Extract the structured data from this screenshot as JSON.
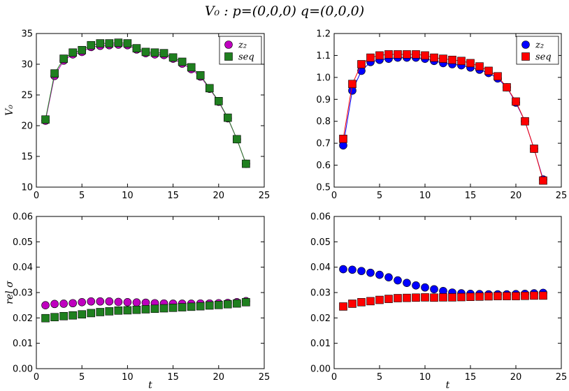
{
  "figure_title": "V₀ : p=(0,0,0)  q=(0,0,0)",
  "chart_data": [
    {
      "type": "scatter",
      "panel": "top-left",
      "ylabel": "V₀",
      "xlabel": "",
      "xlim": [
        0,
        25
      ],
      "ylim": [
        10,
        35
      ],
      "xticks": [
        0,
        5,
        10,
        15,
        20,
        25
      ],
      "yticks": [
        10,
        15,
        20,
        25,
        30,
        35
      ],
      "tick_format": "int",
      "legend_position": "top-right",
      "series": [
        {
          "name": "z₂",
          "marker": "circle",
          "color": "#bf00bf",
          "line": true,
          "x": [
            1,
            2,
            3,
            4,
            5,
            6,
            7,
            8,
            9,
            10,
            11,
            12,
            13,
            14,
            15,
            16,
            17,
            18,
            19,
            20,
            21,
            22,
            23
          ],
          "y": [
            20.8,
            28.1,
            30.6,
            31.6,
            32.0,
            32.8,
            33.0,
            33.1,
            33.2,
            33.1,
            32.4,
            31.8,
            31.6,
            31.5,
            30.9,
            30.1,
            29.2,
            28.0,
            26.0,
            23.9,
            21.2,
            17.8,
            13.8
          ]
        },
        {
          "name": "seq",
          "marker": "square",
          "color": "#1f7f1f",
          "line": true,
          "x": [
            1,
            2,
            3,
            4,
            5,
            6,
            7,
            8,
            9,
            10,
            11,
            12,
            13,
            14,
            15,
            16,
            17,
            18,
            19,
            20,
            21,
            22,
            23
          ],
          "y": [
            21.0,
            28.5,
            30.9,
            31.9,
            32.3,
            33.1,
            33.4,
            33.4,
            33.5,
            33.4,
            32.6,
            32.0,
            31.9,
            31.8,
            31.1,
            30.4,
            29.5,
            28.2,
            26.1,
            24.0,
            21.3,
            17.8,
            13.8
          ]
        }
      ]
    },
    {
      "type": "scatter",
      "panel": "top-right",
      "ylabel": "",
      "xlabel": "",
      "xlim": [
        0,
        25
      ],
      "ylim": [
        0.5,
        1.2
      ],
      "xticks": [
        0,
        5,
        10,
        15,
        20,
        25
      ],
      "yticks": [
        0.5,
        0.6,
        0.7,
        0.8,
        0.9,
        1.0,
        1.1,
        1.2
      ],
      "tick_format": "1",
      "legend_position": "top-right",
      "series": [
        {
          "name": "z₂",
          "marker": "circle",
          "color": "#0000ff",
          "line": true,
          "x": [
            1,
            2,
            3,
            4,
            5,
            6,
            7,
            8,
            9,
            10,
            11,
            12,
            13,
            14,
            15,
            16,
            17,
            18,
            19,
            20,
            21,
            22,
            23
          ],
          "y": [
            0.69,
            0.94,
            1.03,
            1.07,
            1.08,
            1.085,
            1.09,
            1.09,
            1.09,
            1.085,
            1.075,
            1.065,
            1.06,
            1.055,
            1.045,
            1.035,
            1.02,
            0.995,
            0.955,
            0.885,
            0.8,
            0.675,
            0.535
          ]
        },
        {
          "name": "seq",
          "marker": "square",
          "color": "#ff0000",
          "line": true,
          "x": [
            1,
            2,
            3,
            4,
            5,
            6,
            7,
            8,
            9,
            10,
            11,
            12,
            13,
            14,
            15,
            16,
            17,
            18,
            19,
            20,
            21,
            22,
            23
          ],
          "y": [
            0.72,
            0.97,
            1.06,
            1.09,
            1.1,
            1.105,
            1.105,
            1.105,
            1.105,
            1.1,
            1.09,
            1.085,
            1.08,
            1.075,
            1.065,
            1.05,
            1.03,
            1.005,
            0.955,
            0.89,
            0.8,
            0.675,
            0.53
          ]
        }
      ]
    },
    {
      "type": "scatter",
      "panel": "bottom-left",
      "ylabel": "rel σ",
      "xlabel": "t",
      "xlim": [
        0,
        25
      ],
      "ylim": [
        0,
        0.06
      ],
      "xticks": [
        0,
        5,
        10,
        15,
        20,
        25
      ],
      "yticks": [
        0,
        0.01,
        0.02,
        0.03,
        0.04,
        0.05,
        0.06
      ],
      "tick_format": "2",
      "legend_position": "none",
      "series": [
        {
          "name": "z₂",
          "marker": "circle",
          "color": "#bf00bf",
          "line": false,
          "x": [
            1,
            2,
            3,
            4,
            5,
            6,
            7,
            8,
            9,
            10,
            11,
            12,
            13,
            14,
            15,
            16,
            17,
            18,
            19,
            20,
            21,
            22,
            23
          ],
          "y": [
            0.025,
            0.0255,
            0.0256,
            0.0258,
            0.0262,
            0.0265,
            0.0265,
            0.0265,
            0.0263,
            0.0262,
            0.0261,
            0.026,
            0.0258,
            0.0257,
            0.0256,
            0.0256,
            0.0256,
            0.0257,
            0.0257,
            0.0258,
            0.0259,
            0.0262,
            0.0266
          ]
        },
        {
          "name": "seq",
          "marker": "square",
          "color": "#1f7f1f",
          "line": false,
          "x": [
            1,
            2,
            3,
            4,
            5,
            6,
            7,
            8,
            9,
            10,
            11,
            12,
            13,
            14,
            15,
            16,
            17,
            18,
            19,
            20,
            21,
            22,
            23
          ],
          "y": [
            0.0199,
            0.0203,
            0.0207,
            0.021,
            0.0214,
            0.0219,
            0.0223,
            0.0226,
            0.0229,
            0.023,
            0.0232,
            0.0234,
            0.0236,
            0.0238,
            0.024,
            0.0242,
            0.0244,
            0.0246,
            0.0249,
            0.0251,
            0.0254,
            0.0257,
            0.0262
          ]
        }
      ]
    },
    {
      "type": "scatter",
      "panel": "bottom-right",
      "ylabel": "",
      "xlabel": "t",
      "xlim": [
        0,
        25
      ],
      "ylim": [
        0,
        0.06
      ],
      "xticks": [
        0,
        5,
        10,
        15,
        20,
        25
      ],
      "yticks": [
        0,
        0.01,
        0.02,
        0.03,
        0.04,
        0.05,
        0.06
      ],
      "tick_format": "2",
      "legend_position": "none",
      "series": [
        {
          "name": "z₂",
          "marker": "circle",
          "color": "#0000ff",
          "line": false,
          "x": [
            1,
            2,
            3,
            4,
            5,
            6,
            7,
            8,
            9,
            10,
            11,
            12,
            13,
            14,
            15,
            16,
            17,
            18,
            19,
            20,
            21,
            22,
            23
          ],
          "y": [
            0.0392,
            0.039,
            0.0385,
            0.0378,
            0.037,
            0.036,
            0.0348,
            0.0338,
            0.0328,
            0.032,
            0.0313,
            0.0306,
            0.03,
            0.0297,
            0.0295,
            0.0294,
            0.0293,
            0.0293,
            0.0293,
            0.0294,
            0.0295,
            0.0297,
            0.0299
          ]
        },
        {
          "name": "seq",
          "marker": "square",
          "color": "#ff0000",
          "line": false,
          "x": [
            1,
            2,
            3,
            4,
            5,
            6,
            7,
            8,
            9,
            10,
            11,
            12,
            13,
            14,
            15,
            16,
            17,
            18,
            19,
            20,
            21,
            22,
            23
          ],
          "y": [
            0.0245,
            0.0256,
            0.0262,
            0.0266,
            0.0271,
            0.0275,
            0.0278,
            0.0279,
            0.028,
            0.0281,
            0.028,
            0.0281,
            0.0281,
            0.0282,
            0.0283,
            0.0284,
            0.0285,
            0.0286,
            0.0286,
            0.0286,
            0.0287,
            0.0288,
            0.0288
          ]
        }
      ]
    }
  ]
}
